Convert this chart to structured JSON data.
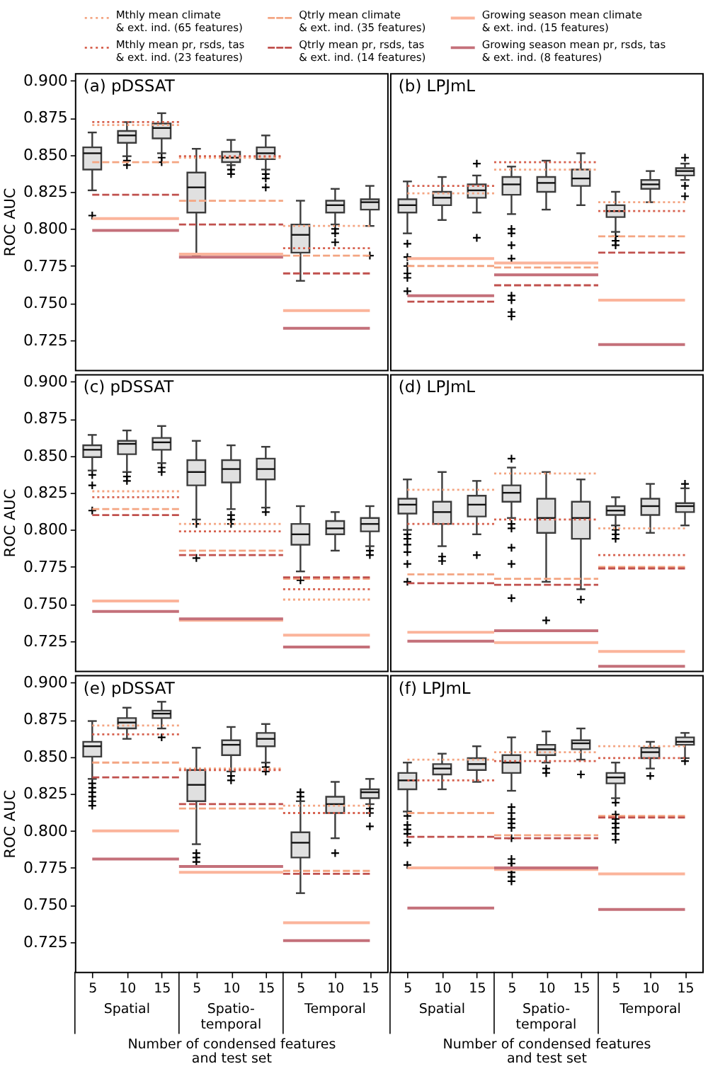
{
  "chart_data": [
    {
      "type": "box",
      "title": "(a) pDSSAT",
      "ylabel": "ROC AUC",
      "categories": [
        "5",
        "10",
        "15",
        "5",
        "10",
        "15",
        "5",
        "10",
        "15"
      ],
      "color": "#e0e0e0",
      "boxes": [
        {
          "low": 0.826,
          "q1": 0.84,
          "median": 0.851,
          "q3": 0.855,
          "high": 0.865,
          "outliers": [
            0.809
          ]
        },
        {
          "low": 0.849,
          "q1": 0.858,
          "median": 0.863,
          "q3": 0.866,
          "high": 0.872,
          "outliers": [
            0.846,
            0.843
          ]
        },
        {
          "low": 0.851,
          "q1": 0.861,
          "median": 0.868,
          "q3": 0.871,
          "high": 0.878,
          "outliers": [
            0.848,
            0.845
          ]
        },
        {
          "low": 0.782,
          "q1": 0.811,
          "median": 0.828,
          "q3": 0.838,
          "high": 0.854
        },
        {
          "low": 0.843,
          "q1": 0.845,
          "median": 0.848,
          "q3": 0.852,
          "high": 0.86,
          "outliers": [
            0.84,
            0.837
          ]
        },
        {
          "low": 0.84,
          "q1": 0.847,
          "median": 0.851,
          "q3": 0.855,
          "high": 0.863,
          "outliers": [
            0.837,
            0.834,
            0.828
          ]
        },
        {
          "low": 0.765,
          "q1": 0.784,
          "median": 0.796,
          "q3": 0.803,
          "high": 0.819
        },
        {
          "low": 0.803,
          "q1": 0.811,
          "median": 0.816,
          "q3": 0.819,
          "high": 0.827,
          "outliers": [
            0.8,
            0.797,
            0.791
          ]
        },
        {
          "low": 0.802,
          "q1": 0.813,
          "median": 0.818,
          "q3": 0.82,
          "high": 0.829,
          "outliers": [
            0.782
          ]
        }
      ],
      "series": [
        {
          "name": "Mthly mean climate & ext. ind. (65 features)",
          "type": "step",
          "line_style": "dotted",
          "color": "#f4a582",
          "values": [
            0.87,
            0.87,
            0.87,
            0.848,
            0.848,
            0.848,
            0.802,
            0.802,
            0.802
          ]
        },
        {
          "name": "Mthly mean pr, rsds, tas & ext. ind. (23 features)",
          "type": "step",
          "line_style": "dotted",
          "color": "#d6604d",
          "values": [
            0.872,
            0.872,
            0.872,
            0.849,
            0.849,
            0.849,
            0.787,
            0.787,
            0.787
          ]
        },
        {
          "name": "Qtrly mean climate & ext. ind. (35 features)",
          "type": "step",
          "line_style": "dashed",
          "color": "#f4a582",
          "values": [
            0.845,
            0.845,
            0.845,
            0.819,
            0.819,
            0.819,
            0.782,
            0.782,
            0.782
          ]
        },
        {
          "name": "Qtrly mean pr, rsds, tas & ext. ind. (14 features)",
          "type": "step",
          "line_style": "dashed",
          "color": "#c0504d",
          "values": [
            0.823,
            0.823,
            0.823,
            0.803,
            0.803,
            0.803,
            0.77,
            0.77,
            0.77
          ]
        },
        {
          "name": "Growing season mean climate & ext. ind. (15 features)",
          "type": "step",
          "line_style": "solid",
          "color": "#fbb49b",
          "values": [
            0.807,
            0.807,
            0.807,
            0.783,
            0.783,
            0.783,
            0.745,
            0.745,
            0.745
          ]
        },
        {
          "name": "Growing season mean pr, rsds, tas & ext. ind. (8 features)",
          "type": "step",
          "line_style": "solid",
          "color": "#c4707a",
          "values": [
            0.799,
            0.799,
            0.799,
            0.781,
            0.781,
            0.781,
            0.733,
            0.733,
            0.733
          ]
        }
      ],
      "ylim": [
        0.705,
        0.905
      ],
      "yticks": [
        0.725,
        {
          "value": 0.75,
          "label": "0.750"
        },
        0.775,
        {
          "value": 0.8,
          "label": "0.800"
        },
        0.825,
        {
          "value": 0.85,
          "label": "0.850"
        },
        0.875,
        {
          "value": 0.9,
          "label": "0.900"
        }
      ],
      "tick_labels": "y",
      "legend": "top"
    },
    {
      "type": "box",
      "title": "(b) LPJmL",
      "categories": [
        "5",
        "10",
        "15",
        "5",
        "10",
        "15",
        "5",
        "10",
        "15"
      ],
      "color": "#e0e0e0",
      "boxes": [
        {
          "low": 0.797,
          "q1": 0.811,
          "median": 0.816,
          "q3": 0.82,
          "high": 0.832,
          "outliers": [
            0.79,
            0.781,
            0.775,
            0.77,
            0.767,
            0.758
          ]
        },
        {
          "low": 0.806,
          "q1": 0.816,
          "median": 0.821,
          "q3": 0.825,
          "high": 0.835
        },
        {
          "low": 0.811,
          "q1": 0.821,
          "median": 0.826,
          "q3": 0.83,
          "high": 0.836,
          "outliers": [
            0.844,
            0.794
          ]
        },
        {
          "low": 0.81,
          "q1": 0.823,
          "median": 0.83,
          "q3": 0.835,
          "high": 0.842,
          "outliers": [
            0.8,
            0.797,
            0.789,
            0.78,
            0.755,
            0.752,
            0.744,
            0.741
          ]
        },
        {
          "low": 0.813,
          "q1": 0.825,
          "median": 0.831,
          "q3": 0.835,
          "high": 0.846
        },
        {
          "low": 0.816,
          "q1": 0.829,
          "median": 0.834,
          "q3": 0.84,
          "high": 0.851
        },
        {
          "low": 0.798,
          "q1": 0.808,
          "median": 0.812,
          "q3": 0.816,
          "high": 0.825,
          "outliers": [
            0.795,
            0.792,
            0.789
          ]
        },
        {
          "low": 0.818,
          "q1": 0.827,
          "median": 0.83,
          "q3": 0.833,
          "high": 0.839
        },
        {
          "low": 0.833,
          "q1": 0.836,
          "median": 0.839,
          "q3": 0.841,
          "high": 0.844,
          "outliers": [
            0.848,
            0.829,
            0.822
          ]
        }
      ],
      "series": [
        {
          "type": "step",
          "line_style": "dotted",
          "color": "#f4a582",
          "values": [
            0.824,
            0.824,
            0.824,
            0.84,
            0.84,
            0.84,
            0.818,
            0.818,
            0.818
          ]
        },
        {
          "type": "step",
          "line_style": "dotted",
          "color": "#d6604d",
          "values": [
            0.829,
            0.829,
            0.829,
            0.845,
            0.845,
            0.845,
            0.812,
            0.812,
            0.812
          ]
        },
        {
          "type": "step",
          "line_style": "dashed",
          "color": "#f4a582",
          "values": [
            0.775,
            0.775,
            0.775,
            0.774,
            0.774,
            0.774,
            0.795,
            0.795,
            0.795
          ]
        },
        {
          "type": "step",
          "line_style": "dashed",
          "color": "#c0504d",
          "values": [
            0.751,
            0.751,
            0.751,
            0.762,
            0.762,
            0.762,
            0.784,
            0.784,
            0.784
          ]
        },
        {
          "type": "step",
          "line_style": "solid",
          "color": "#fbb49b",
          "values": [
            0.78,
            0.78,
            0.78,
            0.777,
            0.777,
            0.777,
            0.752,
            0.752,
            0.752
          ]
        },
        {
          "type": "step",
          "line_style": "solid",
          "color": "#c4707a",
          "values": [
            0.755,
            0.755,
            0.755,
            0.769,
            0.769,
            0.769,
            0.722,
            0.722,
            0.722
          ]
        }
      ],
      "ylim": [
        0.705,
        0.905
      ],
      "tick_labels": false
    },
    {
      "type": "box",
      "title": "(c) pDSSAT",
      "ylabel": "ROC AUC",
      "categories": [
        "5",
        "10",
        "15",
        "5",
        "10",
        "15",
        "5",
        "10",
        "15"
      ],
      "color": "#e0e0e0",
      "boxes": [
        {
          "low": 0.84,
          "q1": 0.849,
          "median": 0.854,
          "q3": 0.857,
          "high": 0.864,
          "outliers": [
            0.837,
            0.83,
            0.813
          ]
        },
        {
          "low": 0.839,
          "q1": 0.851,
          "median": 0.858,
          "q3": 0.86,
          "high": 0.867,
          "outliers": [
            0.836,
            0.833
          ]
        },
        {
          "low": 0.845,
          "q1": 0.854,
          "median": 0.859,
          "q3": 0.862,
          "high": 0.87,
          "outliers": [
            0.842,
            0.839
          ]
        },
        {
          "low": 0.807,
          "q1": 0.83,
          "median": 0.839,
          "q3": 0.847,
          "high": 0.86,
          "outliers": [
            0.804,
            0.781
          ]
        },
        {
          "low": 0.814,
          "q1": 0.832,
          "median": 0.841,
          "q3": 0.847,
          "high": 0.857,
          "outliers": [
            0.81,
            0.807,
            0.804
          ]
        },
        {
          "low": 0.815,
          "q1": 0.834,
          "median": 0.841,
          "q3": 0.848,
          "high": 0.856,
          "outliers": [
            0.812
          ]
        },
        {
          "low": 0.772,
          "q1": 0.79,
          "median": 0.797,
          "q3": 0.804,
          "high": 0.816,
          "outliers": [
            0.766
          ]
        },
        {
          "low": 0.786,
          "q1": 0.797,
          "median": 0.801,
          "q3": 0.806,
          "high": 0.812
        },
        {
          "low": 0.789,
          "q1": 0.799,
          "median": 0.804,
          "q3": 0.808,
          "high": 0.816,
          "outliers": [
            0.786,
            0.783
          ]
        }
      ],
      "series": [
        {
          "type": "step",
          "line_style": "dotted",
          "color": "#f4a582",
          "values": [
            0.826,
            0.826,
            0.826,
            0.804,
            0.804,
            0.804,
            0.753,
            0.753,
            0.753
          ]
        },
        {
          "type": "step",
          "line_style": "dotted",
          "color": "#d6604d",
          "values": [
            0.822,
            0.822,
            0.822,
            0.799,
            0.799,
            0.799,
            0.76,
            0.76,
            0.76
          ]
        },
        {
          "type": "step",
          "line_style": "dashed",
          "color": "#f4a582",
          "values": [
            0.814,
            0.814,
            0.814,
            0.786,
            0.786,
            0.786,
            0.767,
            0.767,
            0.767
          ]
        },
        {
          "type": "step",
          "line_style": "dashed",
          "color": "#c0504d",
          "values": [
            0.81,
            0.81,
            0.81,
            0.783,
            0.783,
            0.783,
            0.768,
            0.768,
            0.768
          ]
        },
        {
          "type": "step",
          "line_style": "solid",
          "color": "#fbb49b",
          "values": [
            0.752,
            0.752,
            0.752,
            0.739,
            0.739,
            0.739,
            0.729,
            0.729,
            0.729
          ]
        },
        {
          "type": "step",
          "line_style": "solid",
          "color": "#c4707a",
          "values": [
            0.745,
            0.745,
            0.745,
            0.74,
            0.74,
            0.74,
            0.721,
            0.721,
            0.721
          ]
        }
      ],
      "ylim": [
        0.705,
        0.905
      ],
      "yticks": [
        0.725,
        {
          "value": 0.75,
          "label": "0.750"
        },
        0.775,
        {
          "value": 0.8,
          "label": "0.800"
        },
        0.825,
        {
          "value": 0.85,
          "label": "0.850"
        },
        0.875,
        {
          "value": 0.9,
          "label": "0.900"
        }
      ],
      "tick_labels": "y"
    },
    {
      "type": "box",
      "title": "(d) LPJmL",
      "categories": [
        "5",
        "10",
        "15",
        "5",
        "10",
        "15",
        "5",
        "10",
        "15"
      ],
      "color": "#e0e0e0",
      "boxes": [
        {
          "low": 0.8,
          "q1": 0.811,
          "median": 0.817,
          "q3": 0.821,
          "high": 0.834,
          "outliers": [
            0.797,
            0.794,
            0.79,
            0.785,
            0.777,
            0.765
          ]
        },
        {
          "low": 0.789,
          "q1": 0.804,
          "median": 0.812,
          "q3": 0.819,
          "high": 0.839,
          "outliers": [
            0.782,
            0.779
          ]
        },
        {
          "low": 0.797,
          "q1": 0.809,
          "median": 0.817,
          "q3": 0.823,
          "high": 0.833,
          "outliers": [
            0.783
          ]
        },
        {
          "low": 0.808,
          "q1": 0.819,
          "median": 0.825,
          "q3": 0.83,
          "high": 0.842,
          "outliers": [
            0.848,
            0.804,
            0.801,
            0.788,
            0.777,
            0.754
          ]
        },
        {
          "low": 0.765,
          "q1": 0.798,
          "median": 0.808,
          "q3": 0.821,
          "high": 0.839,
          "outliers": [
            0.739
          ]
        },
        {
          "low": 0.76,
          "q1": 0.794,
          "median": 0.808,
          "q3": 0.819,
          "high": 0.834,
          "outliers": [
            0.753
          ]
        },
        {
          "low": 0.803,
          "q1": 0.81,
          "median": 0.813,
          "q3": 0.816,
          "high": 0.822,
          "outliers": [
            0.8,
            0.797,
            0.794
          ]
        },
        {
          "low": 0.798,
          "q1": 0.81,
          "median": 0.816,
          "q3": 0.821,
          "high": 0.831
        },
        {
          "low": 0.803,
          "q1": 0.812,
          "median": 0.816,
          "q3": 0.818,
          "high": 0.828,
          "outliers": [
            0.831
          ]
        }
      ],
      "series": [
        {
          "type": "step",
          "line_style": "dotted",
          "color": "#f4a582",
          "values": [
            0.827,
            0.827,
            0.827,
            0.838,
            0.838,
            0.838,
            0.801,
            0.801,
            0.801
          ]
        },
        {
          "type": "step",
          "line_style": "dotted",
          "color": "#d6604d",
          "values": [
            0.804,
            0.804,
            0.804,
            0.807,
            0.807,
            0.807,
            0.783,
            0.783,
            0.783
          ]
        },
        {
          "type": "step",
          "line_style": "dashed",
          "color": "#f4a582",
          "values": [
            0.77,
            0.77,
            0.77,
            0.767,
            0.767,
            0.767,
            0.775,
            0.775,
            0.775
          ]
        },
        {
          "type": "step",
          "line_style": "dashed",
          "color": "#c0504d",
          "values": [
            0.764,
            0.764,
            0.764,
            0.763,
            0.763,
            0.763,
            0.774,
            0.774,
            0.774
          ]
        },
        {
          "type": "step",
          "line_style": "solid",
          "color": "#fbb49b",
          "values": [
            0.731,
            0.731,
            0.731,
            0.724,
            0.724,
            0.724,
            0.718,
            0.718,
            0.718
          ]
        },
        {
          "type": "step",
          "line_style": "solid",
          "color": "#c4707a",
          "values": [
            0.725,
            0.725,
            0.725,
            0.732,
            0.732,
            0.732,
            0.708,
            0.708,
            0.708
          ]
        }
      ],
      "ylim": [
        0.705,
        0.905
      ],
      "tick_labels": false
    },
    {
      "type": "box",
      "title": "(e) pDSSAT",
      "ylabel": "ROC AUC",
      "xlabel": "Number of condensed features and test set",
      "annotations": [
        "Spatial",
        "Spatio-temporal",
        "Temporal"
      ],
      "categories": [
        "5",
        "10",
        "15",
        "5",
        "10",
        "15",
        "5",
        "10",
        "15"
      ],
      "color": "#e0e0e0",
      "boxes": [
        {
          "low": 0.835,
          "q1": 0.85,
          "median": 0.857,
          "q3": 0.86,
          "high": 0.874,
          "outliers": [
            0.832,
            0.829,
            0.826,
            0.823,
            0.82,
            0.817
          ]
        },
        {
          "low": 0.862,
          "q1": 0.869,
          "median": 0.873,
          "q3": 0.876,
          "high": 0.883
        },
        {
          "low": 0.869,
          "q1": 0.876,
          "median": 0.879,
          "q3": 0.881,
          "high": 0.887,
          "outliers": [
            0.863
          ]
        },
        {
          "low": 0.791,
          "q1": 0.82,
          "median": 0.831,
          "q3": 0.841,
          "high": 0.856,
          "outliers": [
            0.785,
            0.782,
            0.779
          ]
        },
        {
          "low": 0.84,
          "q1": 0.851,
          "median": 0.858,
          "q3": 0.861,
          "high": 0.87,
          "outliers": [
            0.837,
            0.834
          ]
        },
        {
          "low": 0.846,
          "q1": 0.857,
          "median": 0.862,
          "q3": 0.866,
          "high": 0.872,
          "outliers": [
            0.843,
            0.84
          ]
        },
        {
          "low": 0.758,
          "q1": 0.782,
          "median": 0.792,
          "q3": 0.799,
          "high": 0.82,
          "outliers": [
            0.826,
            0.823
          ]
        },
        {
          "low": 0.795,
          "q1": 0.812,
          "median": 0.818,
          "q3": 0.823,
          "high": 0.833,
          "outliers": [
            0.785
          ]
        },
        {
          "low": 0.818,
          "q1": 0.822,
          "median": 0.826,
          "q3": 0.828,
          "high": 0.835,
          "outliers": [
            0.815,
            0.812,
            0.803
          ]
        }
      ],
      "series": [
        {
          "type": "step",
          "line_style": "dotted",
          "color": "#f4a582",
          "values": [
            0.871,
            0.871,
            0.871,
            0.842,
            0.842,
            0.842,
            0.817,
            0.817,
            0.817
          ]
        },
        {
          "type": "step",
          "line_style": "dotted",
          "color": "#d6604d",
          "values": [
            0.865,
            0.865,
            0.865,
            0.841,
            0.841,
            0.841,
            0.812,
            0.812,
            0.812
          ]
        },
        {
          "type": "step",
          "line_style": "dashed",
          "color": "#f4a582",
          "values": [
            0.846,
            0.846,
            0.846,
            0.815,
            0.815,
            0.815,
            0.773,
            0.773,
            0.773
          ]
        },
        {
          "type": "step",
          "line_style": "dashed",
          "color": "#c0504d",
          "values": [
            0.836,
            0.836,
            0.836,
            0.818,
            0.818,
            0.818,
            0.771,
            0.771,
            0.771
          ]
        },
        {
          "type": "step",
          "line_style": "solid",
          "color": "#fbb49b",
          "values": [
            0.8,
            0.8,
            0.8,
            0.772,
            0.772,
            0.772,
            0.738,
            0.738,
            0.738
          ]
        },
        {
          "type": "step",
          "line_style": "solid",
          "color": "#c4707a",
          "values": [
            0.781,
            0.781,
            0.781,
            0.776,
            0.776,
            0.776,
            0.726,
            0.726,
            0.726
          ]
        }
      ],
      "ylim": [
        0.705,
        0.905
      ],
      "yticks": [
        0.725,
        {
          "value": 0.75,
          "label": "0.750"
        },
        0.775,
        {
          "value": 0.8,
          "label": "0.800"
        },
        0.825,
        {
          "value": 0.85,
          "label": "0.850"
        },
        0.875,
        {
          "value": 0.9,
          "label": "0.900"
        }
      ]
    },
    {
      "type": "box",
      "title": "(f) LPJmL",
      "xlabel": "Number of condensed features and test set",
      "annotations": [
        "Spatial",
        "Spatio-temporal",
        "Temporal"
      ],
      "categories": [
        "5",
        "10",
        "15",
        "5",
        "10",
        "15",
        "5",
        "10",
        "15"
      ],
      "color": "#e0e0e0",
      "boxes": [
        {
          "low": 0.813,
          "q1": 0.828,
          "median": 0.834,
          "q3": 0.839,
          "high": 0.846,
          "outliers": [
            0.81,
            0.804,
            0.801,
            0.798,
            0.792,
            0.777
          ]
        },
        {
          "low": 0.828,
          "q1": 0.838,
          "median": 0.842,
          "q3": 0.845,
          "high": 0.852
        },
        {
          "low": 0.833,
          "q1": 0.841,
          "median": 0.845,
          "q3": 0.849,
          "high": 0.857
        },
        {
          "low": 0.827,
          "q1": 0.839,
          "median": 0.846,
          "q3": 0.851,
          "high": 0.863,
          "outliers": [
            0.816,
            0.812,
            0.808,
            0.805,
            0.802,
            0.795,
            0.781,
            0.778,
            0.775,
            0.772,
            0.769,
            0.766
          ]
        },
        {
          "low": 0.846,
          "q1": 0.851,
          "median": 0.855,
          "q3": 0.858,
          "high": 0.867,
          "outliers": [
            0.842,
            0.839
          ]
        },
        {
          "low": 0.848,
          "q1": 0.855,
          "median": 0.859,
          "q3": 0.861,
          "high": 0.869,
          "outliers": [
            0.838
          ]
        },
        {
          "low": 0.822,
          "q1": 0.832,
          "median": 0.836,
          "q3": 0.839,
          "high": 0.846,
          "outliers": [
            0.819,
            0.811,
            0.808,
            0.805,
            0.802,
            0.798,
            0.794
          ]
        },
        {
          "low": 0.842,
          "q1": 0.849,
          "median": 0.853,
          "q3": 0.856,
          "high": 0.86,
          "outliers": [
            0.837
          ]
        },
        {
          "low": 0.849,
          "q1": 0.858,
          "median": 0.86,
          "q3": 0.863,
          "high": 0.866,
          "outliers": [
            0.847
          ]
        }
      ],
      "series": [
        {
          "type": "step",
          "line_style": "dotted",
          "color": "#f4a582",
          "values": [
            0.848,
            0.848,
            0.848,
            0.853,
            0.853,
            0.853,
            0.857,
            0.857,
            0.857
          ]
        },
        {
          "type": "step",
          "line_style": "dotted",
          "color": "#d6604d",
          "values": [
            0.834,
            0.834,
            0.834,
            0.847,
            0.847,
            0.847,
            0.849,
            0.849,
            0.849
          ]
        },
        {
          "type": "step",
          "line_style": "dashed",
          "color": "#f4a582",
          "values": [
            0.812,
            0.812,
            0.812,
            0.797,
            0.797,
            0.797,
            0.81,
            0.81,
            0.81
          ]
        },
        {
          "type": "step",
          "line_style": "dashed",
          "color": "#c0504d",
          "values": [
            0.796,
            0.796,
            0.796,
            0.795,
            0.795,
            0.795,
            0.809,
            0.809,
            0.809
          ]
        },
        {
          "type": "step",
          "line_style": "solid",
          "color": "#fbb49b",
          "values": [
            0.775,
            0.775,
            0.775,
            0.774,
            0.774,
            0.774,
            0.771,
            0.771,
            0.771
          ]
        },
        {
          "type": "step",
          "line_style": "solid",
          "color": "#c4707a",
          "values": [
            0.748,
            0.748,
            0.748,
            0.775,
            0.775,
            0.775,
            0.747,
            0.747,
            0.747
          ]
        }
      ],
      "ylim": [
        0.705,
        0.905
      ],
      "tick_labels": "x"
    }
  ]
}
